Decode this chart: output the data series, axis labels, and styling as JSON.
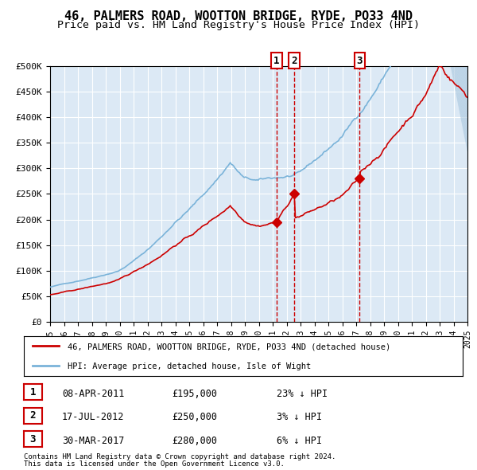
{
  "title": "46, PALMERS ROAD, WOOTTON BRIDGE, RYDE, PO33 4ND",
  "subtitle": "Price paid vs. HM Land Registry's House Price Index (HPI)",
  "title_fontsize": 11,
  "subtitle_fontsize": 9.5,
  "plot_bg_color": "#dce9f5",
  "grid_color": "#ffffff",
  "hpi_line_color": "#7ab3d9",
  "price_line_color": "#cc0000",
  "marker_color": "#cc0000",
  "vline_color": "#cc0000",
  "xmin": 1995,
  "xmax": 2025,
  "ymin": 0,
  "ymax": 500000,
  "yticks": [
    0,
    50000,
    100000,
    150000,
    200000,
    250000,
    300000,
    350000,
    400000,
    450000,
    500000
  ],
  "ytick_labels": [
    "£0",
    "£50K",
    "£100K",
    "£150K",
    "£200K",
    "£250K",
    "£300K",
    "£350K",
    "£400K",
    "£450K",
    "£500K"
  ],
  "xtick_years": [
    1995,
    1996,
    1997,
    1998,
    1999,
    2000,
    2001,
    2002,
    2003,
    2004,
    2005,
    2006,
    2007,
    2008,
    2009,
    2010,
    2011,
    2012,
    2013,
    2014,
    2015,
    2016,
    2017,
    2018,
    2019,
    2020,
    2021,
    2022,
    2023,
    2024,
    2025
  ],
  "transactions": [
    {
      "id": 1,
      "date": "08-APR-2011",
      "year": 2011.27,
      "price": 195000,
      "pct": "23%",
      "dir": "↓"
    },
    {
      "id": 2,
      "date": "17-JUL-2012",
      "year": 2012.54,
      "price": 250000,
      "pct": "3%",
      "dir": "↓"
    },
    {
      "id": 3,
      "date": "30-MAR-2017",
      "year": 2017.25,
      "price": 280000,
      "pct": "6%",
      "dir": "↓"
    }
  ],
  "legend_line1": "46, PALMERS ROAD, WOOTTON BRIDGE, RYDE, PO33 4ND (detached house)",
  "legend_line2": "HPI: Average price, detached house, Isle of Wight",
  "footer1": "Contains HM Land Registry data © Crown copyright and database right 2024.",
  "footer2": "This data is licensed under the Open Government Licence v3.0."
}
